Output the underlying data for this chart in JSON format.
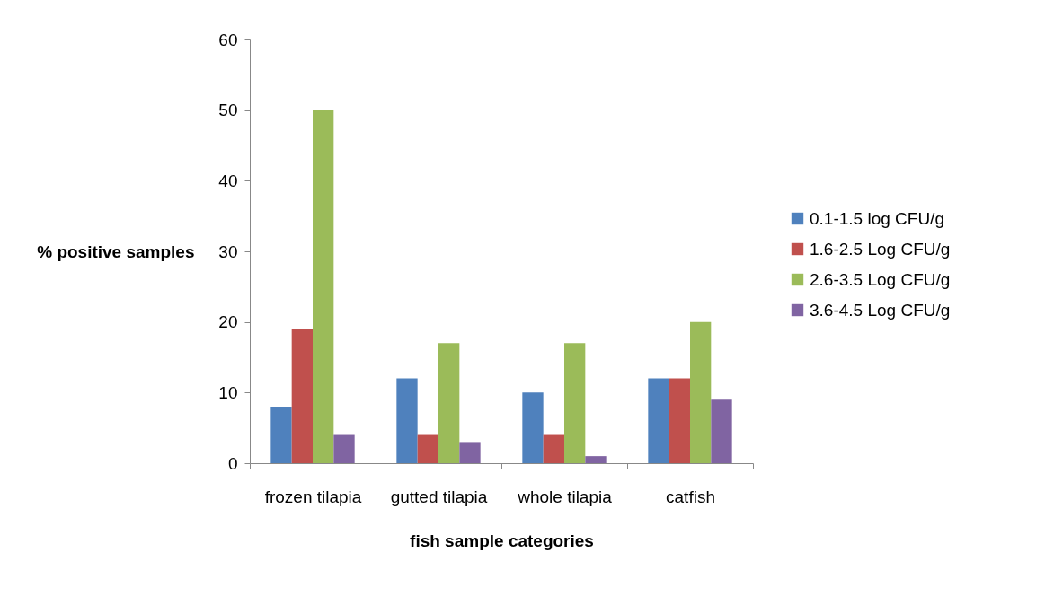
{
  "chart_data": {
    "type": "bar",
    "xlabel": "fish sample categories",
    "ylabel": "% positive samples",
    "categories": [
      "frozen tilapia",
      "gutted tilapia",
      "whole tilapia",
      "catfish"
    ],
    "series": [
      {
        "name": "0.1-1.5 log CFU/g",
        "color": "#4f81bd",
        "values": [
          8,
          12,
          10,
          12
        ]
      },
      {
        "name": "1.6-2.5 Log CFU/g",
        "color": "#c0504d",
        "values": [
          19,
          4,
          4,
          12
        ]
      },
      {
        "name": "2.6-3.5 Log CFU/g",
        "color": "#9bbb59",
        "values": [
          50,
          17,
          17,
          20
        ]
      },
      {
        "name": "3.6-4.5 Log CFU/g",
        "color": "#8064a2",
        "values": [
          4,
          3,
          1,
          9
        ]
      }
    ],
    "ylim": [
      0,
      60
    ],
    "yticks": [
      0,
      10,
      20,
      30,
      40,
      50,
      60
    ],
    "legend": "right"
  }
}
